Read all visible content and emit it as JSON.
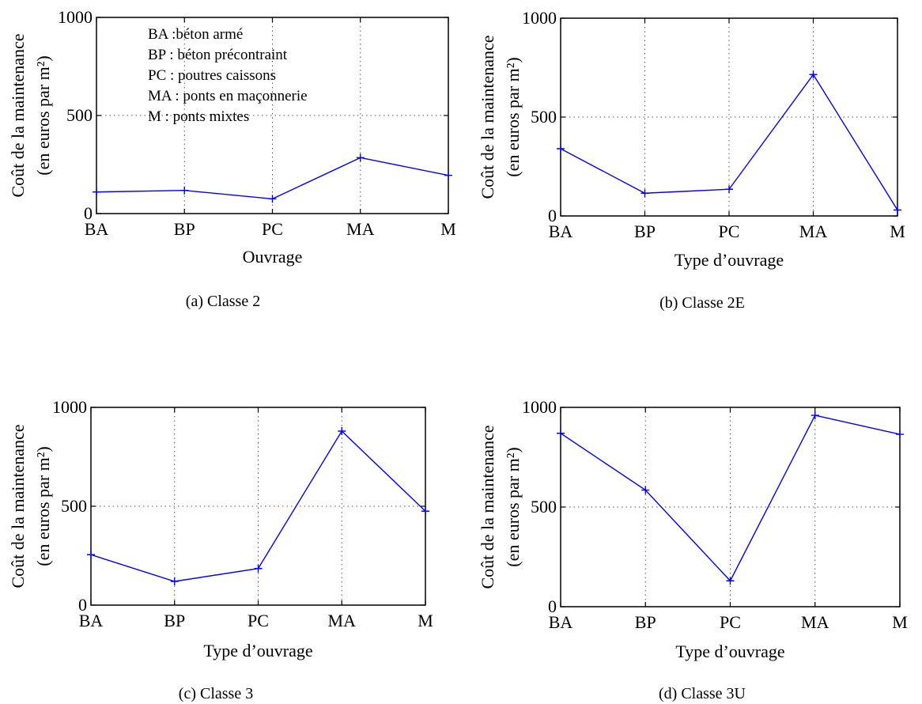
{
  "colors": {
    "series": "#0000ff"
  },
  "chart_data": [
    {
      "type": "line",
      "caption": "(a)  Classe 2",
      "xlabel": "Ouvrage",
      "ylabel": [
        "Coût de la maintenance",
        "(en euros par m²)"
      ],
      "categories": [
        "BA",
        "BP",
        "PC",
        "MA",
        "M"
      ],
      "y_ticks": [
        "0",
        "500",
        "1000"
      ],
      "ylim": [
        0,
        1000
      ],
      "grid": true,
      "legend_position": "top-left",
      "legend": [
        "BA :béton armé",
        "BP : béton précontraint",
        "PC : poutres caissons",
        "MA : ponts en maçonnerie",
        "M : ponts mixtes"
      ],
      "series": [
        {
          "values": [
            110,
            118,
            75,
            285,
            195
          ]
        }
      ]
    },
    {
      "type": "line",
      "caption": "(b)  Classe 2E",
      "xlabel": "Type d’ouvrage",
      "ylabel": [
        "Coût de la maintenance",
        "(en euros par m²)"
      ],
      "categories": [
        "BA",
        "BP",
        "PC",
        "MA",
        "M"
      ],
      "y_ticks": [
        "0",
        "500",
        "1000"
      ],
      "ylim": [
        0,
        1000
      ],
      "grid": true,
      "series": [
        {
          "values": [
            340,
            115,
            135,
            715,
            30
          ]
        }
      ]
    },
    {
      "type": "line",
      "caption": "(c)  Classe 3",
      "xlabel": "Type d’ouvrage",
      "ylabel": [
        "Coût de la maintenance",
        "(en euros par m²)"
      ],
      "categories": [
        "BA",
        "BP",
        "PC",
        "MA",
        "M"
      ],
      "y_ticks": [
        "0",
        "500",
        "1000"
      ],
      "ylim": [
        0,
        1000
      ],
      "grid": true,
      "series": [
        {
          "values": [
            255,
            120,
            185,
            880,
            475
          ]
        }
      ]
    },
    {
      "type": "line",
      "caption": "(d)  Classe 3U",
      "xlabel": "Type d’ouvrage",
      "ylabel": [
        "Coût de la maintenance",
        "(en euros par m²)"
      ],
      "categories": [
        "BA",
        "BP",
        "PC",
        "MA",
        "M"
      ],
      "y_ticks": [
        "0",
        "500",
        "1000"
      ],
      "ylim": [
        0,
        1000
      ],
      "grid": true,
      "series": [
        {
          "values": [
            870,
            585,
            130,
            960,
            865
          ]
        }
      ]
    }
  ]
}
